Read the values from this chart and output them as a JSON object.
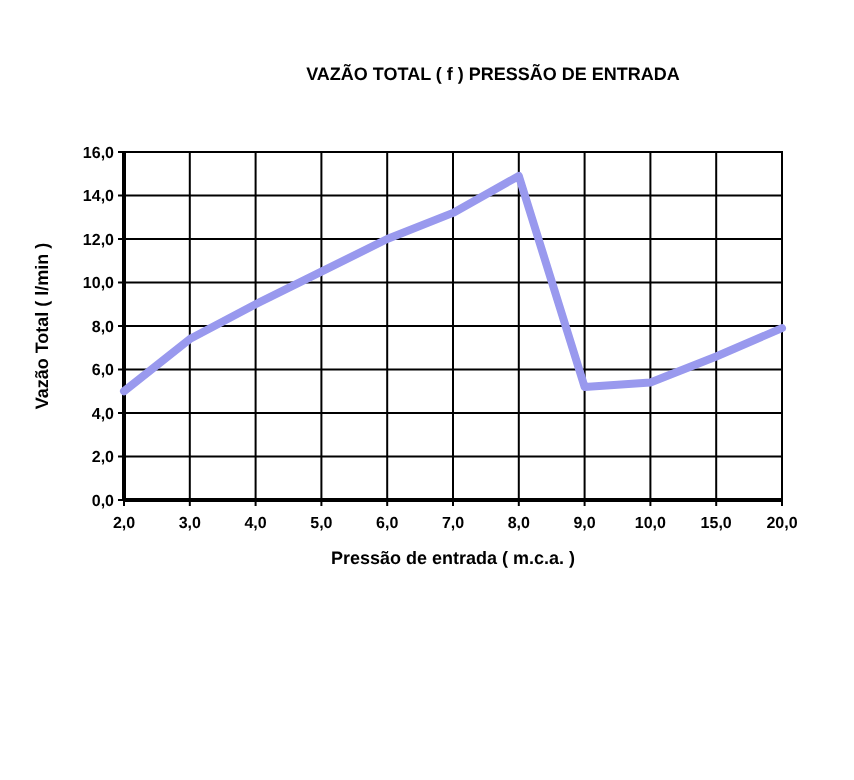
{
  "chart_data": {
    "type": "line",
    "title": "VAZÃO TOTAL ( f ) PRESSÃO DE ENTRADA",
    "xlabel": "Pressão de entrada ( m.c.a. )",
    "ylabel": "Vazão Total ( l/min )",
    "categories": [
      "2,0",
      "3,0",
      "4,0",
      "5,0",
      "6,0",
      "7,0",
      "8,0",
      "9,0",
      "10,0",
      "15,0",
      "20,0"
    ],
    "series": [
      {
        "color": "#9999ee",
        "values": [
          5.0,
          7.4,
          9.0,
          10.5,
          12.0,
          13.2,
          14.9,
          5.2,
          5.4,
          6.6,
          7.9
        ]
      }
    ],
    "ylim": [
      0,
      16
    ],
    "yticks": [
      {
        "value": 0,
        "label": "0,0"
      },
      {
        "value": 2,
        "label": "2,0"
      },
      {
        "value": 4,
        "label": "4,0"
      },
      {
        "value": 6,
        "label": "6,0"
      },
      {
        "value": 8,
        "label": "8,0"
      },
      {
        "value": 10,
        "label": "10,0"
      },
      {
        "value": 12,
        "label": "12,0"
      },
      {
        "value": 14,
        "label": "14,0"
      },
      {
        "value": 16,
        "label": "16,0"
      }
    ],
    "grid": true,
    "marker": "none",
    "line_style": "solid"
  }
}
